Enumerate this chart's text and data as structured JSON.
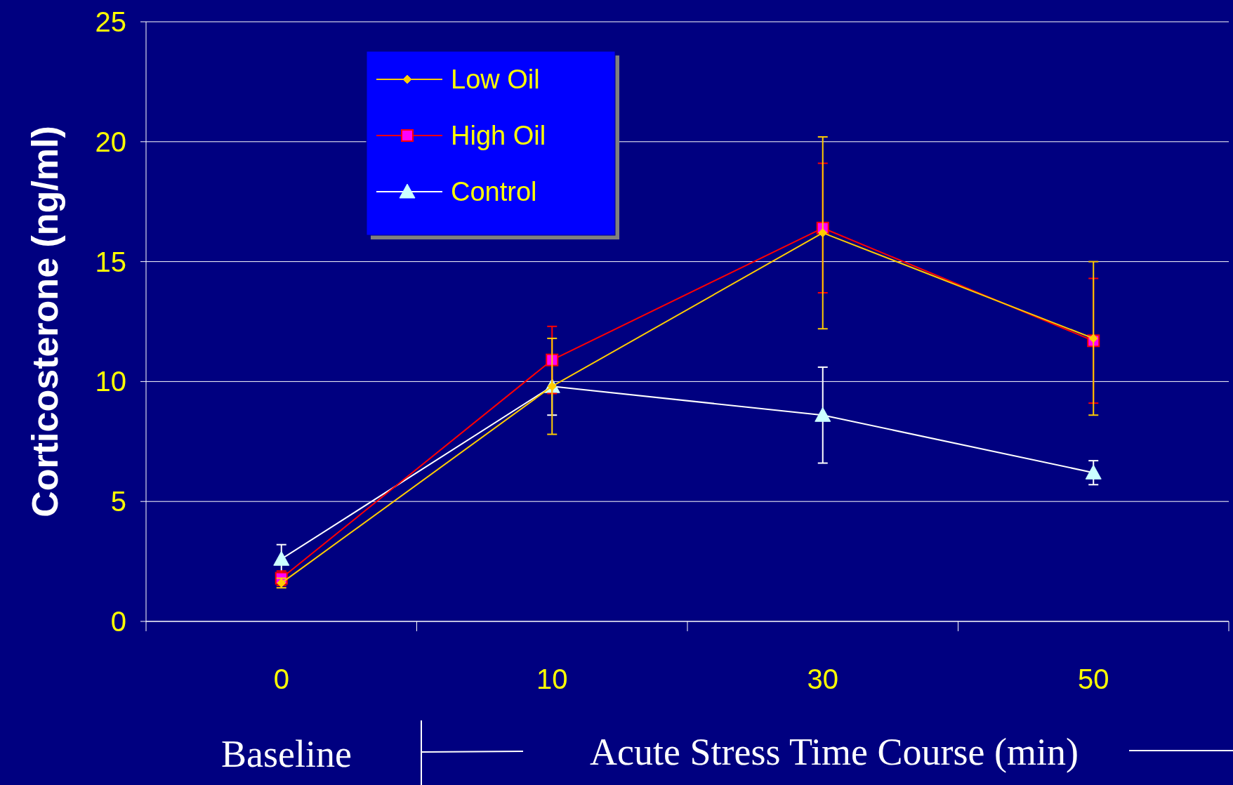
{
  "chart_data": {
    "type": "line",
    "ylabel": "Corticosterone (ng/ml)",
    "categories": [
      "0",
      "10",
      "30",
      "50"
    ],
    "ylim": [
      0,
      25
    ],
    "yticks": [
      0,
      5,
      10,
      15,
      20,
      25
    ],
    "grid": "y",
    "legend": "top left",
    "annotations": [
      "Baseline",
      "Acute Stress Time Course (min)"
    ],
    "series": [
      {
        "name": "Low Oil",
        "color": "#ffcc00",
        "marker": "diamond",
        "values": [
          1.6,
          9.8,
          16.2,
          11.8
        ],
        "errors": [
          0.2,
          2.0,
          4.0,
          3.2
        ]
      },
      {
        "name": "High Oil",
        "color": "#ff0000",
        "marker": "square",
        "values": [
          1.8,
          10.9,
          16.4,
          11.7
        ],
        "errors": [
          0.3,
          1.4,
          2.7,
          2.6
        ]
      },
      {
        "name": "Control",
        "color": "#ffffff",
        "marker": "triangle",
        "values": [
          2.6,
          9.8,
          8.6,
          6.2
        ],
        "errors": [
          0.6,
          1.2,
          2.0,
          0.5
        ]
      }
    ]
  }
}
